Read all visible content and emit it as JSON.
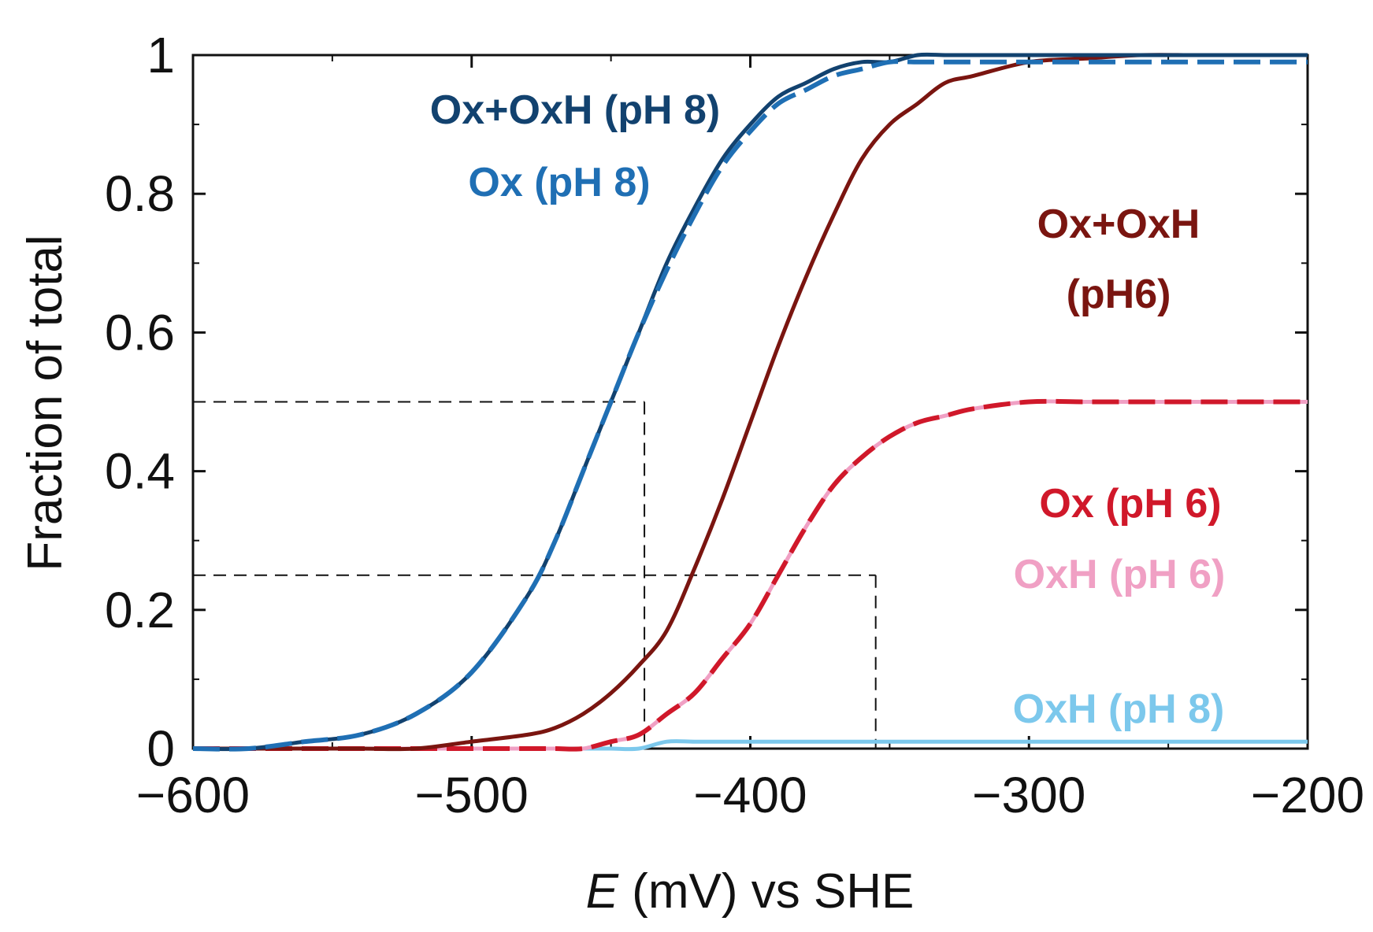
{
  "chart_data": {
    "type": "line",
    "title": "",
    "xlabel_italic": "E",
    "xlabel_rest": " (mV) vs  SHE",
    "ylabel": "Fraction of total",
    "xlim": [
      -600,
      -200
    ],
    "ylim": [
      0,
      1
    ],
    "x_ticks": [
      -600,
      -500,
      -400,
      -300,
      -200
    ],
    "x_tick_labels": [
      "−600",
      "−500",
      "−400",
      "−300",
      "−200"
    ],
    "y_ticks": [
      0,
      0.2,
      0.4,
      0.6,
      0.8,
      1
    ],
    "y_tick_labels": [
      "0",
      "0.2",
      "0.4",
      "0.6",
      "0.8",
      "1"
    ],
    "x": [
      -600,
      -580,
      -560,
      -540,
      -520,
      -500,
      -480,
      -470,
      -460,
      -450,
      -440,
      -430,
      -420,
      -410,
      -400,
      -390,
      -380,
      -370,
      -360,
      -350,
      -340,
      -330,
      -320,
      -300,
      -280,
      -260,
      -240,
      -220,
      -200
    ],
    "series": [
      {
        "name": "Ox+OxH (pH 8)",
        "label": "Ox+OxH (pH 8)",
        "color": "#12426f",
        "dash": "solid",
        "values": [
          0.0,
          0.0,
          0.01,
          0.02,
          0.05,
          0.11,
          0.22,
          0.3,
          0.4,
          0.5,
          0.6,
          0.7,
          0.78,
          0.85,
          0.9,
          0.94,
          0.96,
          0.98,
          0.99,
          0.99,
          1.0,
          1.0,
          1.0,
          1.0,
          1.0,
          1.0,
          1.0,
          1.0,
          1.0
        ]
      },
      {
        "name": "Ox (pH 8)",
        "label": "Ox (pH 8)",
        "color": "#1f6fb4",
        "dash": "long-dash",
        "values": [
          0.0,
          0.0,
          0.01,
          0.02,
          0.05,
          0.11,
          0.22,
          0.3,
          0.4,
          0.5,
          0.6,
          0.69,
          0.77,
          0.84,
          0.89,
          0.93,
          0.95,
          0.97,
          0.98,
          0.99,
          0.99,
          0.99,
          0.99,
          0.99,
          0.99,
          0.99,
          0.99,
          0.99,
          0.99
        ]
      },
      {
        "name": "Ox+OxH (pH6)",
        "label_line1": "Ox+OxH",
        "label_line2": "(pH6)",
        "color": "#7a1510",
        "dash": "solid",
        "values": [
          0.0,
          0.0,
          0.0,
          0.0,
          0.0,
          0.01,
          0.02,
          0.03,
          0.05,
          0.08,
          0.12,
          0.17,
          0.26,
          0.36,
          0.47,
          0.58,
          0.68,
          0.77,
          0.85,
          0.9,
          0.93,
          0.96,
          0.97,
          0.99,
          0.995,
          1.0,
          1.0,
          1.0,
          1.0
        ]
      },
      {
        "name": "OxH (pH 6)",
        "label": "OxH (pH 6)",
        "color": "#f0a0c4",
        "dash": "solid",
        "values": [
          0.0,
          0.0,
          0.0,
          0.0,
          0.0,
          0.0,
          0.0,
          0.0,
          0.0,
          0.01,
          0.02,
          0.05,
          0.08,
          0.13,
          0.18,
          0.25,
          0.32,
          0.38,
          0.42,
          0.45,
          0.47,
          0.48,
          0.49,
          0.5,
          0.5,
          0.5,
          0.5,
          0.5,
          0.5
        ]
      },
      {
        "name": "Ox (pH 6)",
        "label": "Ox (pH 6)",
        "color": "#d0182a",
        "dash": "long-dash",
        "values": [
          0.0,
          0.0,
          0.0,
          0.0,
          0.0,
          0.0,
          0.0,
          0.0,
          0.0,
          0.01,
          0.02,
          0.05,
          0.08,
          0.13,
          0.18,
          0.25,
          0.32,
          0.38,
          0.42,
          0.45,
          0.47,
          0.48,
          0.49,
          0.5,
          0.5,
          0.5,
          0.5,
          0.5,
          0.5
        ]
      },
      {
        "name": "OxH (pH 8)",
        "label": "OxH (pH 8)",
        "color": "#7cc8ec",
        "dash": "solid",
        "values": [
          0.0,
          0.0,
          0.0,
          0.0,
          0.0,
          0.0,
          0.0,
          0.0,
          0.0,
          0.0,
          0.0,
          0.01,
          0.01,
          0.01,
          0.01,
          0.01,
          0.01,
          0.01,
          0.01,
          0.01,
          0.01,
          0.01,
          0.01,
          0.01,
          0.01,
          0.01,
          0.01,
          0.01,
          0.01
        ]
      }
    ],
    "reference_lines": [
      {
        "name": "half-point-pH8",
        "x": -438,
        "y": 0.5
      },
      {
        "name": "quarter-point-pH6",
        "x": -355,
        "y": 0.25
      }
    ]
  }
}
